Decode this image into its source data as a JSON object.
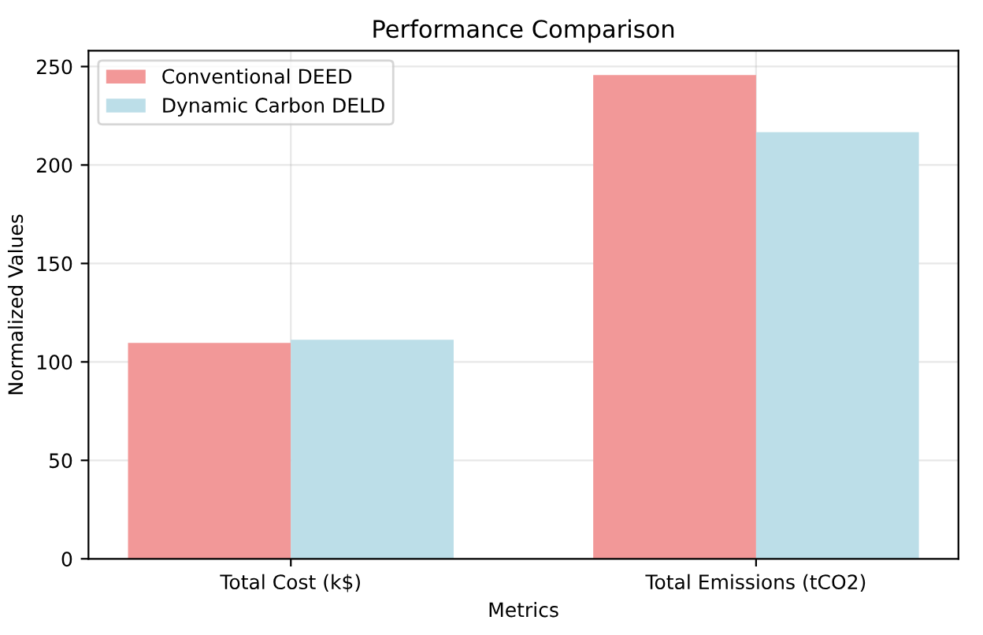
{
  "chart_data": {
    "type": "bar",
    "title": "Performance Comparison",
    "xlabel": "Metrics",
    "ylabel": "Normalized Values",
    "categories": [
      "Total Cost (k$)",
      "Total Emissions (tCO2)"
    ],
    "series": [
      {
        "name": "Conventional DEED",
        "color": "#f29898",
        "values": [
          109.6,
          245.7
        ]
      },
      {
        "name": "Dynamic Carbon DELD",
        "color": "#bcdee8",
        "values": [
          111.2,
          216.7
        ]
      }
    ],
    "ylim": [
      0,
      258
    ],
    "yticks": [
      0,
      50,
      100,
      150,
      200,
      250
    ],
    "grid": true,
    "legend": "top left"
  }
}
